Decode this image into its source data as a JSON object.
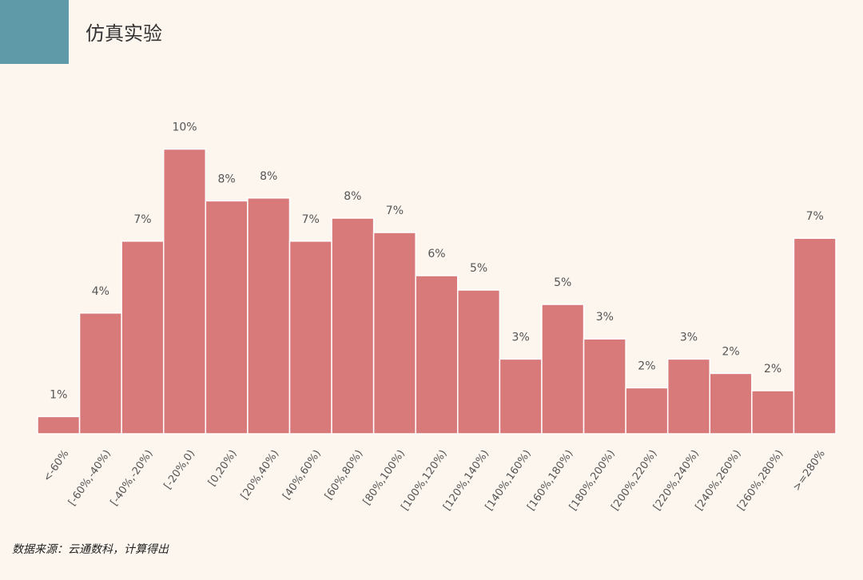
{
  "chart_data": {
    "type": "bar",
    "title": "仿真实验",
    "source": "数据来源：云通数科，计算得出",
    "categories": [
      "<-60%",
      "[-60%,-40%)",
      "[-40%,-20%)",
      "[-20%,0)",
      "[0,20%)",
      "[20%,40%)",
      "[40%,60%)",
      "[60%,80%)",
      "[80%,100%)",
      "[100%,120%)",
      "[120%,140%)",
      "[140%,160%)",
      "[160%,180%)",
      "[180%,200%)",
      "[200%,220%)",
      "[220%,240%)",
      "[240%,260%)",
      "[260%,280%)",
      ">=280%"
    ],
    "values": [
      0.6,
      4.2,
      6.7,
      9.9,
      8.1,
      8.2,
      6.7,
      7.5,
      7.0,
      5.5,
      5.0,
      2.6,
      4.5,
      3.3,
      1.6,
      2.6,
      2.1,
      1.5,
      6.8
    ],
    "value_labels": [
      "1%",
      "4%",
      "7%",
      "10%",
      "8%",
      "8%",
      "7%",
      "8%",
      "7%",
      "6%",
      "5%",
      "3%",
      "5%",
      "3%",
      "2%",
      "3%",
      "2%",
      "2%",
      "7%"
    ],
    "color": "#d97a7a"
  }
}
